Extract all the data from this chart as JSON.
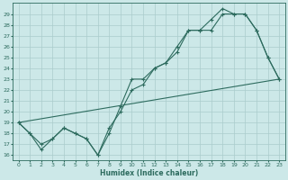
{
  "xlabel": "Humidex (Indice chaleur)",
  "bg_color": "#cce8e8",
  "grid_color": "#aacccc",
  "line_color": "#2d6b5e",
  "xlim": [
    -0.5,
    23.5
  ],
  "ylim": [
    15.5,
    30.0
  ],
  "xticks": [
    0,
    1,
    2,
    3,
    4,
    5,
    6,
    7,
    8,
    9,
    10,
    11,
    12,
    13,
    14,
    15,
    16,
    17,
    18,
    19,
    20,
    21,
    22,
    23
  ],
  "yticks": [
    16,
    17,
    18,
    19,
    20,
    21,
    22,
    23,
    24,
    25,
    26,
    27,
    28,
    29
  ],
  "line1_x": [
    0,
    1,
    2,
    3,
    4,
    5,
    6,
    7,
    8,
    9,
    10,
    11,
    12,
    13,
    14,
    15,
    16,
    17,
    18,
    19,
    20,
    21,
    22,
    23
  ],
  "line1_y": [
    19,
    18,
    17,
    17.5,
    18.5,
    18,
    17.5,
    16,
    18,
    20.5,
    23,
    23,
    24,
    24.5,
    25.5,
    27.5,
    27.5,
    27.5,
    29,
    29,
    29,
    27.5,
    25,
    23
  ],
  "line2_x": [
    0,
    1,
    2,
    3,
    4,
    5,
    6,
    7,
    8,
    9,
    10,
    11,
    12,
    13,
    14,
    15,
    16,
    17,
    18,
    19,
    20,
    21,
    22,
    23
  ],
  "line2_y": [
    19,
    18,
    16.5,
    17.5,
    18.5,
    18,
    17.5,
    16,
    18.5,
    20,
    22,
    22.5,
    24,
    24.5,
    26,
    27.5,
    27.5,
    28.5,
    29.5,
    29,
    29,
    27.5,
    25,
    23
  ],
  "line3_x": [
    0,
    23
  ],
  "line3_y": [
    19.0,
    23.0
  ]
}
